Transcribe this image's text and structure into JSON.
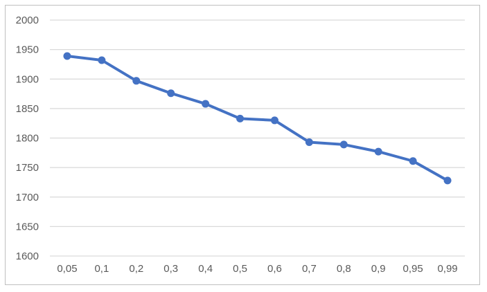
{
  "chart_data": {
    "type": "line",
    "title": "",
    "xlabel": "",
    "ylabel": "",
    "categories": [
      "0,05",
      "0,1",
      "0,2",
      "0,3",
      "0,4",
      "0,5",
      "0,6",
      "0,7",
      "0,8",
      "0,9",
      "0,95",
      "0,99"
    ],
    "values": [
      1939,
      1932,
      1897,
      1876,
      1858,
      1833,
      1830,
      1793,
      1789,
      1777,
      1761,
      1728
    ],
    "ylim": [
      1600,
      2000
    ],
    "yticks": [
      "2000",
      "1950",
      "1900",
      "1850",
      "1800",
      "1750",
      "1700",
      "1650",
      "1600"
    ],
    "ytick_step": 50,
    "grid": true,
    "legend_position": "none",
    "marker": "circle",
    "colors": {
      "line": "#4472C4",
      "marker": "#4472C4",
      "gridline": "#D9D9D9",
      "tick_label": "#595959",
      "frame_border": "#BFBFBF",
      "background": "#FFFFFF"
    }
  }
}
